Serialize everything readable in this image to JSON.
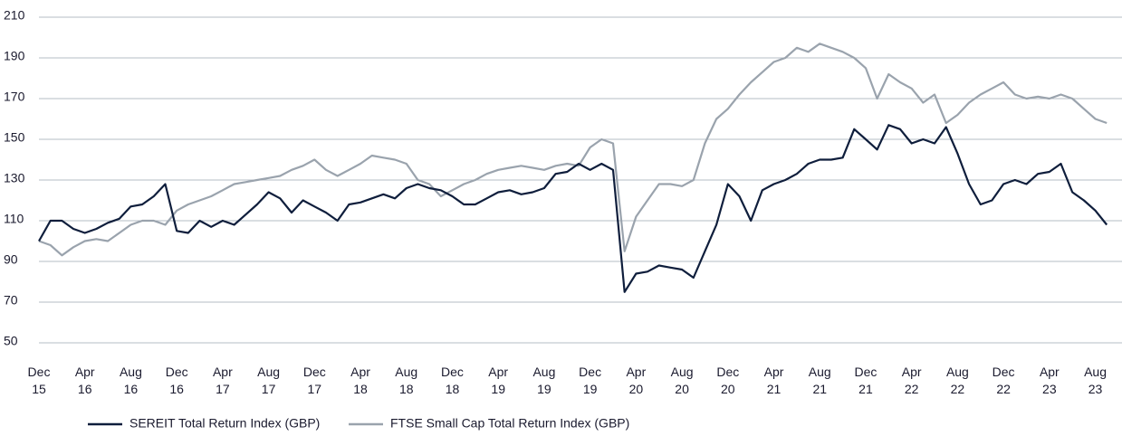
{
  "chart_data": {
    "type": "line",
    "x": [
      "Dec 15",
      "Jan 16",
      "Feb 16",
      "Mar 16",
      "Apr 16",
      "May 16",
      "Jun 16",
      "Jul 16",
      "Aug 16",
      "Sep 16",
      "Oct 16",
      "Nov 16",
      "Dec 16",
      "Jan 17",
      "Feb 17",
      "Mar 17",
      "Apr 17",
      "May 17",
      "Jun 17",
      "Jul 17",
      "Aug 17",
      "Sep 17",
      "Oct 17",
      "Nov 17",
      "Dec 17",
      "Jan 18",
      "Feb 18",
      "Mar 18",
      "Apr 18",
      "May 18",
      "Jun 18",
      "Jul 18",
      "Aug 18",
      "Sep 18",
      "Oct 18",
      "Nov 18",
      "Dec 18",
      "Jan 19",
      "Feb 19",
      "Mar 19",
      "Apr 19",
      "May 19",
      "Jun 19",
      "Jul 19",
      "Aug 19",
      "Sep 19",
      "Oct 19",
      "Nov 19",
      "Dec 19",
      "Jan 20",
      "Feb 20",
      "Mar 20",
      "Apr 20",
      "May 20",
      "Jun 20",
      "Jul 20",
      "Aug 20",
      "Sep 20",
      "Oct 20",
      "Nov 20",
      "Dec 20",
      "Jan 21",
      "Feb 21",
      "Mar 21",
      "Apr 21",
      "May 21",
      "Jun 21",
      "Jul 21",
      "Aug 21",
      "Sep 21",
      "Oct 21",
      "Nov 21",
      "Dec 21",
      "Jan 22",
      "Feb 22",
      "Mar 22",
      "Apr 22",
      "May 22",
      "Jun 22",
      "Jul 22",
      "Aug 22",
      "Sep 22",
      "Oct 22",
      "Nov 22",
      "Dec 22",
      "Jan 23",
      "Feb 23",
      "Mar 23",
      "Apr 23",
      "May 23",
      "Jun 23",
      "Jul 23",
      "Aug 23",
      "Sep 23"
    ],
    "xticks": [
      "Dec 15",
      "Apr 16",
      "Aug 16",
      "Dec 16",
      "Apr 17",
      "Aug 17",
      "Dec 17",
      "Apr 18",
      "Aug 18",
      "Dec 18",
      "Apr 19",
      "Aug 19",
      "Dec 19",
      "Apr 20",
      "Aug 20",
      "Dec 20",
      "Apr 21",
      "Aug 21",
      "Dec 21",
      "Apr 22",
      "Aug 22",
      "Dec 22",
      "Apr 23",
      "Aug 23"
    ],
    "series": [
      {
        "name": "SEREIT Total Return Index (GBP)",
        "color": "#0f1e3c",
        "values": [
          100,
          110,
          110,
          106,
          104,
          106,
          109,
          111,
          117,
          118,
          122,
          128,
          105,
          104,
          110,
          107,
          110,
          108,
          113,
          118,
          124,
          121,
          114,
          120,
          117,
          114,
          110,
          118,
          119,
          121,
          123,
          121,
          126,
          128,
          126,
          125,
          122,
          118,
          118,
          121,
          124,
          125,
          123,
          124,
          126,
          133,
          134,
          138,
          135,
          138,
          135,
          75,
          84,
          85,
          88,
          87,
          86,
          82,
          95,
          108,
          128,
          122,
          110,
          125,
          128,
          130,
          133,
          138,
          140,
          140,
          141,
          155,
          150,
          145,
          157,
          155,
          148,
          150,
          148,
          156,
          143,
          128,
          118,
          120,
          128,
          130,
          128,
          133,
          134,
          138,
          124,
          120,
          115,
          108
        ]
      },
      {
        "name": "FTSE Small Cap Total Return Index (GBP)",
        "color": "#9aa3ad",
        "values": [
          100,
          98,
          93,
          97,
          100,
          101,
          100,
          104,
          108,
          110,
          110,
          108,
          115,
          118,
          120,
          122,
          125,
          128,
          129,
          130,
          131,
          132,
          135,
          137,
          140,
          135,
          132,
          135,
          138,
          142,
          141,
          140,
          138,
          130,
          128,
          122,
          125,
          128,
          130,
          133,
          135,
          136,
          137,
          136,
          135,
          137,
          138,
          137,
          146,
          150,
          148,
          95,
          112,
          120,
          128,
          128,
          127,
          130,
          148,
          160,
          165,
          172,
          178,
          183,
          188,
          190,
          195,
          193,
          197,
          195,
          193,
          190,
          185,
          170,
          182,
          178,
          175,
          168,
          172,
          158,
          162,
          168,
          172,
          175,
          178,
          172,
          170,
          171,
          170,
          172,
          170,
          165,
          160,
          158
        ]
      }
    ],
    "ylim": [
      50,
      210
    ],
    "yticks": [
      50,
      70,
      90,
      110,
      130,
      150,
      170,
      190,
      210
    ],
    "grid": true
  }
}
